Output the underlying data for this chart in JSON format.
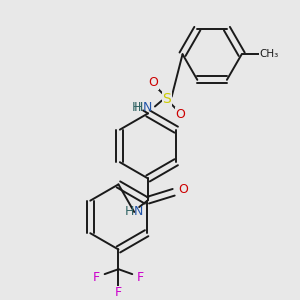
{
  "background_color": "#e8e8e8",
  "bond_color": "#1a1a1a",
  "bond_width": 1.4,
  "figsize": [
    3.0,
    3.0
  ],
  "dpi": 100,
  "colors": {
    "N": "#336666",
    "H": "#336666",
    "O": "#cc0000",
    "S": "#cccc00",
    "F": "#cc00cc",
    "C": "#1a1a1a",
    "CH3": "#1a1a1a"
  }
}
